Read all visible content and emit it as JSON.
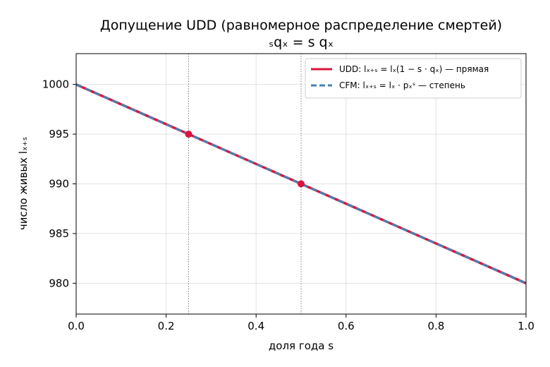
{
  "chart_data": {
    "type": "line",
    "title": "Допущение UDD (равномерное распределение смертей)",
    "subtitle": "ₛqₓ = s qₓ",
    "xlabel": "доля года s",
    "ylabel": "число живых lₓ₊ₛ",
    "xlim": [
      0.0,
      1.0
    ],
    "ylim": [
      976.9,
      1003.1
    ],
    "x_ticks": [
      0.0,
      0.2,
      0.4,
      0.6,
      0.8,
      1.0
    ],
    "x_tick_labels": [
      "0.0",
      "0.2",
      "0.4",
      "0.6",
      "0.8",
      "1.0"
    ],
    "y_ticks": [
      980,
      985,
      990,
      995,
      1000
    ],
    "y_tick_labels": [
      "980",
      "985",
      "990",
      "995",
      "1000"
    ],
    "grid": true,
    "legend_position": "top-right",
    "series": [
      {
        "name": "UDD: lₓ₊ₛ = lₓ(1 − s · qₓ) — прямая",
        "style": "solid",
        "color": "#dc143c",
        "x": [
          0.0,
          1.0
        ],
        "y": [
          1000,
          980
        ]
      },
      {
        "name": "CFM: lₓ₊ₛ = lₓ · pₓˢ — степень",
        "style": "dashed",
        "color": "#4682b4",
        "x": [
          0.0,
          1.0
        ],
        "y": [
          1000,
          980
        ]
      }
    ],
    "markers": [
      {
        "x": 0.25,
        "y": 995,
        "color": "#dc143c"
      },
      {
        "x": 0.5,
        "y": 990,
        "color": "#dc143c"
      }
    ],
    "vertical_lines": [
      0.25,
      0.5
    ]
  }
}
